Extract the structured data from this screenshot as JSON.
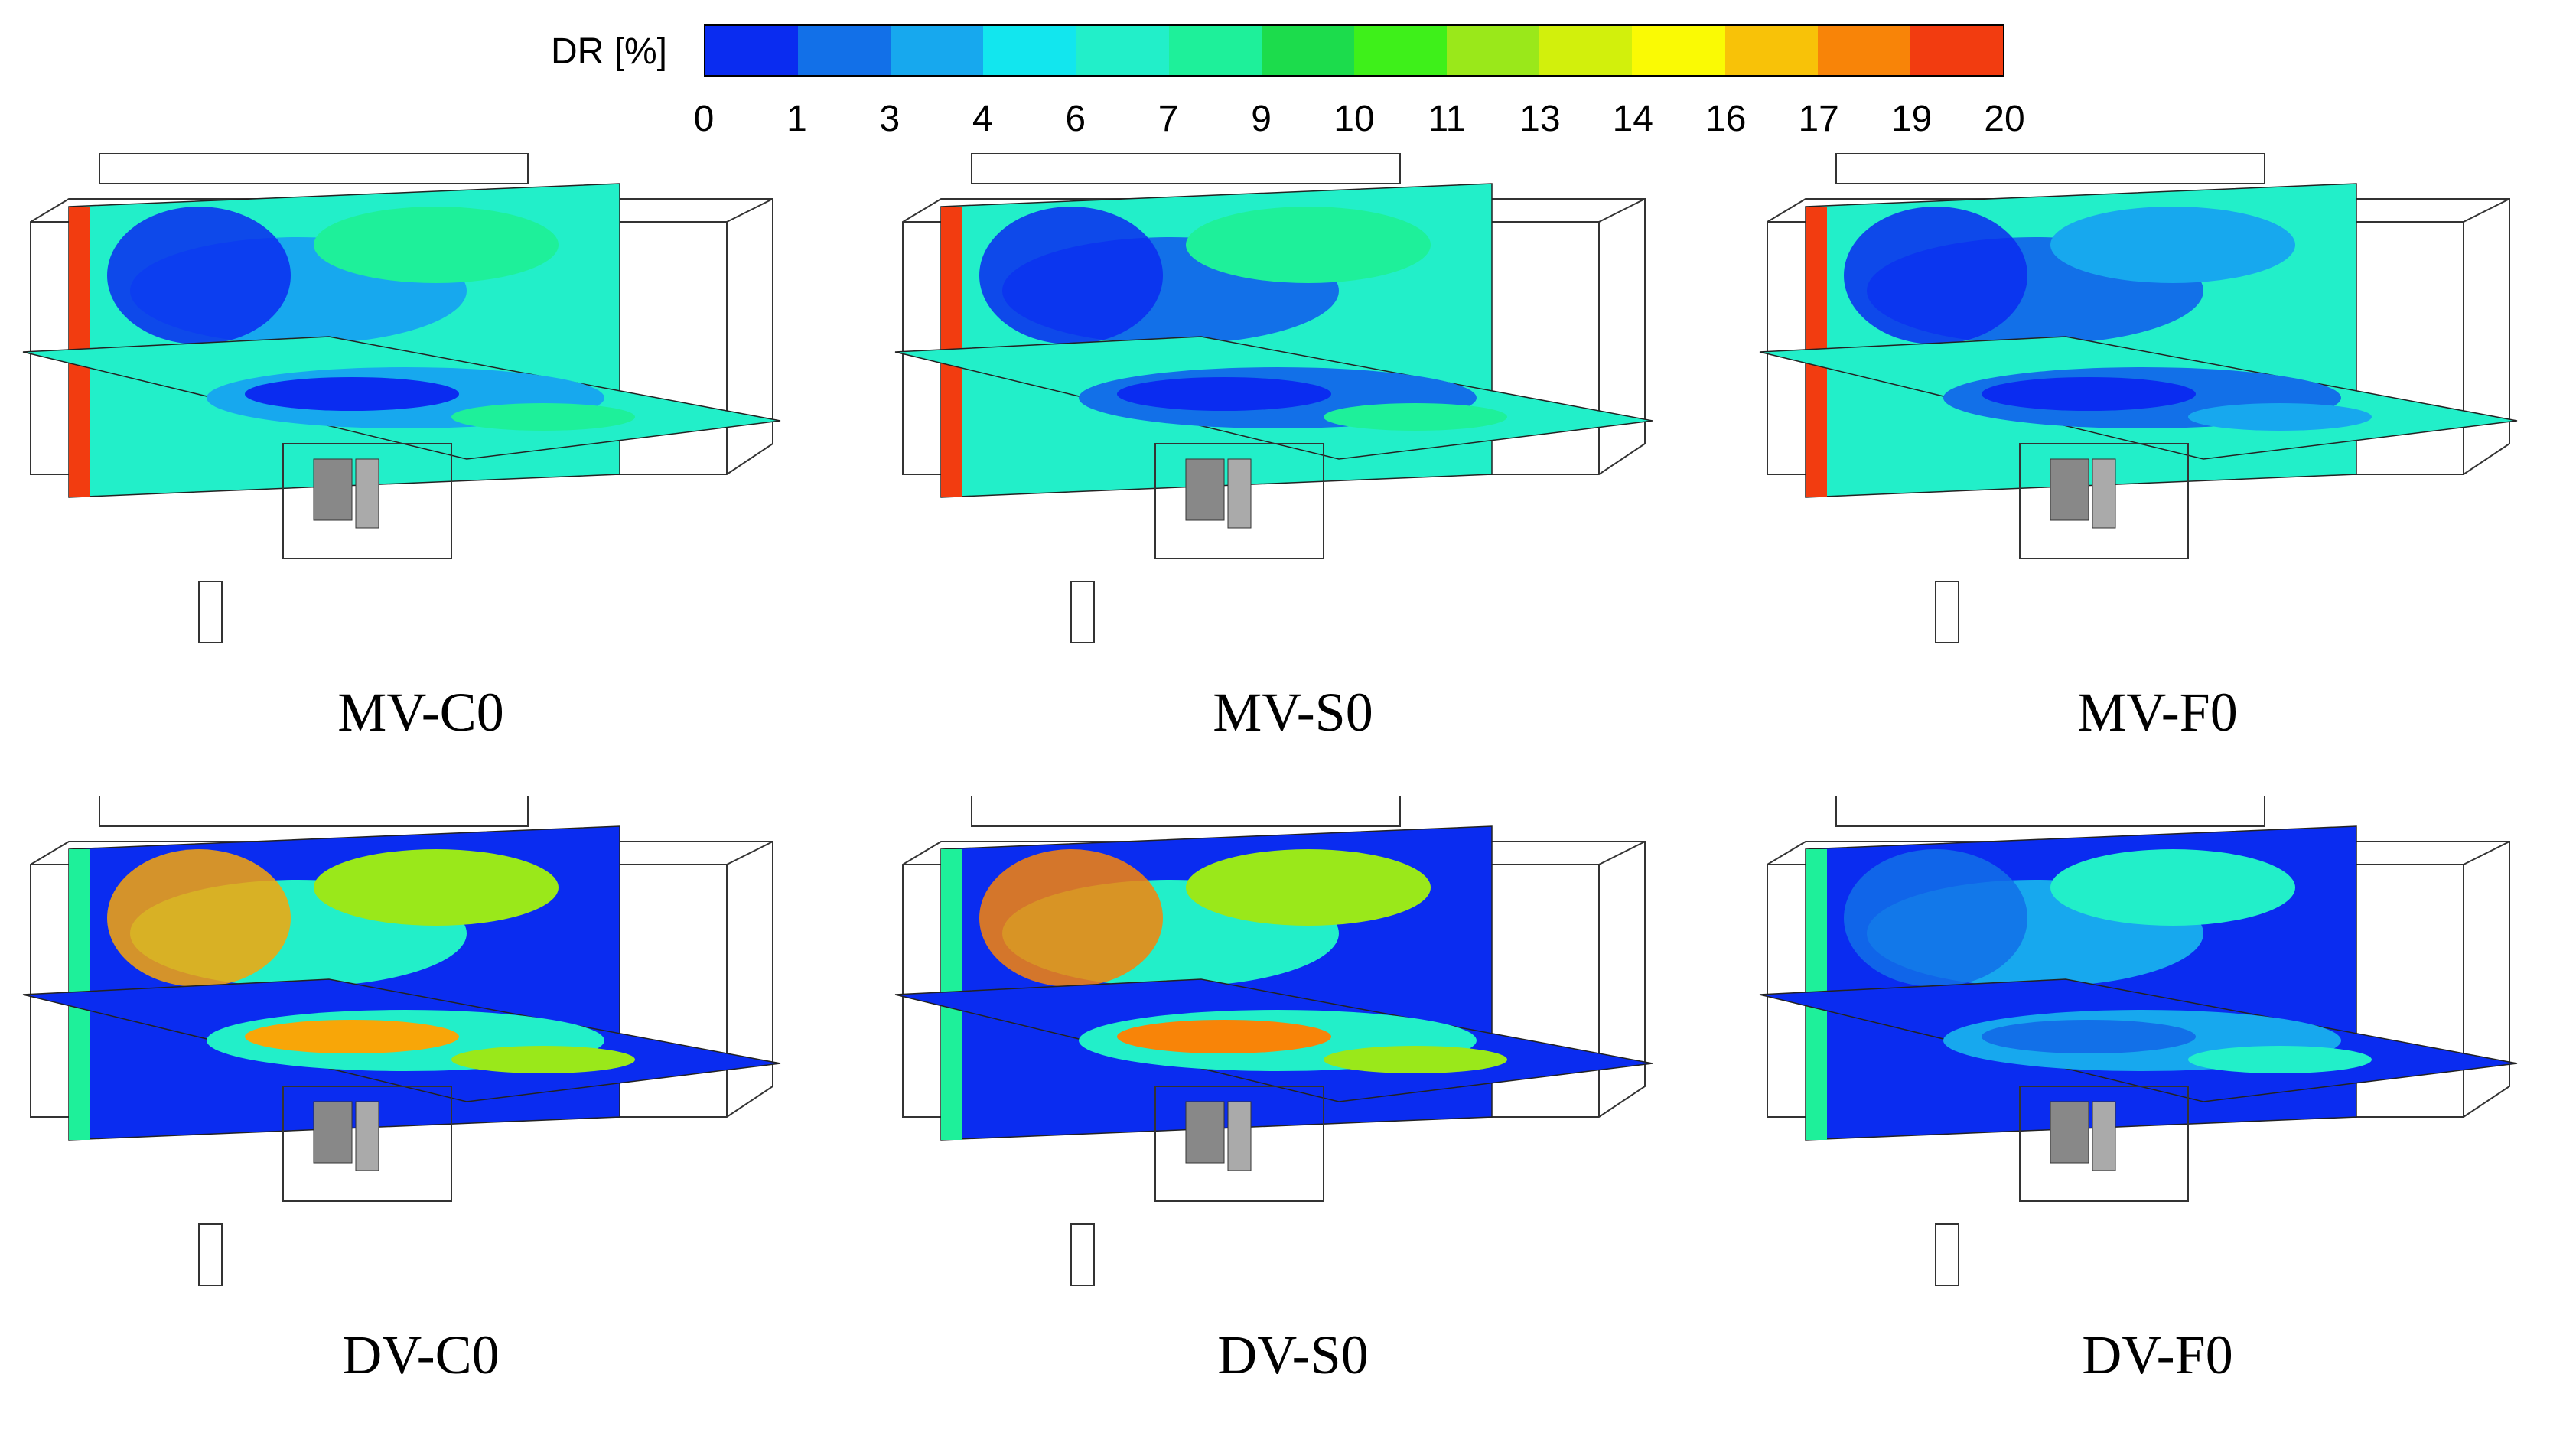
{
  "legend": {
    "title": "DR [%]",
    "ticks": [
      "0",
      "1",
      "3",
      "4",
      "6",
      "7",
      "9",
      "10",
      "11",
      "13",
      "14",
      "16",
      "17",
      "19",
      "20"
    ],
    "colors": [
      "#0a2cf0",
      "#1270e8",
      "#17a8ee",
      "#12e6ee",
      "#22efc9",
      "#1ef09a",
      "#1cdc4c",
      "#3ef01a",
      "#9ae81a",
      "#d2f00c",
      "#fafa04",
      "#f8c208",
      "#f88408",
      "#f23c10"
    ]
  },
  "panels": [
    {
      "label": "MV-C0",
      "palette": {
        "bg": "#22efc9",
        "a": "#17a8ee",
        "b": "#1ef09a",
        "c": "#0a2cf0",
        "edge": "#f23c10"
      }
    },
    {
      "label": "MV-S0",
      "palette": {
        "bg": "#22efc9",
        "a": "#1270e8",
        "b": "#1ef09a",
        "c": "#0a2cf0",
        "edge": "#f23c10"
      }
    },
    {
      "label": "MV-F0",
      "palette": {
        "bg": "#22efc9",
        "a": "#1270e8",
        "b": "#17a8ee",
        "c": "#0a2cf0",
        "edge": "#f23c10"
      }
    },
    {
      "label": "DV-C0",
      "palette": {
        "bg": "#0a2cf0",
        "a": "#22efc9",
        "b": "#9ae81a",
        "c": "#f8a608",
        "edge": "#1ef09a"
      }
    },
    {
      "label": "DV-S0",
      "palette": {
        "bg": "#0a2cf0",
        "a": "#22efc9",
        "b": "#9ae81a",
        "c": "#f88408",
        "edge": "#1ef09a"
      }
    },
    {
      "label": "DV-F0",
      "palette": {
        "bg": "#0a2cf0",
        "a": "#17a8ee",
        "b": "#22efc9",
        "c": "#1270e8",
        "edge": "#1ef09a"
      }
    }
  ]
}
